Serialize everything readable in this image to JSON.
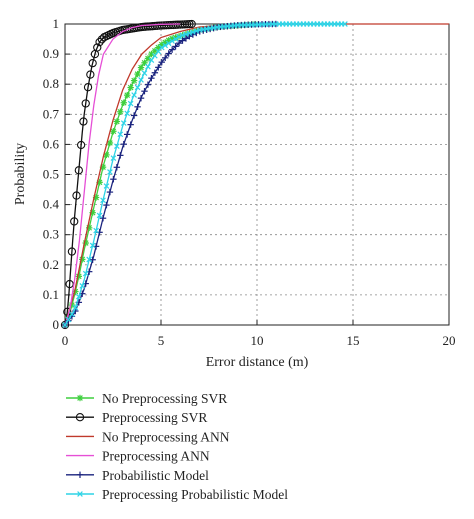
{
  "chart_data": {
    "type": "line",
    "xlabel": "Error distance (m)",
    "ylabel": "Probability",
    "xlim": [
      0,
      20
    ],
    "ylim": [
      0,
      1
    ],
    "xticks": [
      "0",
      "5",
      "10",
      "15",
      "20"
    ],
    "yticks": [
      "0",
      "0.1",
      "0.2",
      "0.3",
      "0.4",
      "0.5",
      "0.6",
      "0.7",
      "0.8",
      "0.9",
      "1"
    ],
    "grid": true,
    "legend_position": "bottom",
    "series": [
      {
        "name": "No Preprocessing SVR",
        "color": "#3ecf3e",
        "marker": "asterisk",
        "x": [
          0,
          0.25,
          0.5,
          0.75,
          1.0,
          1.25,
          1.5,
          1.75,
          2.0,
          2.5,
          3.0,
          3.5,
          4.0,
          4.5,
          5.0,
          5.5,
          6.0,
          7.0,
          8.0,
          9.0,
          10.0
        ],
        "y": [
          0,
          0.04,
          0.1,
          0.17,
          0.25,
          0.32,
          0.39,
          0.46,
          0.53,
          0.64,
          0.73,
          0.8,
          0.86,
          0.9,
          0.93,
          0.95,
          0.96,
          0.98,
          0.99,
          0.995,
          1.0
        ]
      },
      {
        "name": "Preprocessing SVR",
        "color": "#111111",
        "marker": "circle",
        "x": [
          0,
          0.1,
          0.2,
          0.3,
          0.4,
          0.5,
          0.6,
          0.7,
          0.8,
          0.9,
          1.0,
          1.2,
          1.4,
          1.6,
          1.8,
          2.0,
          2.5,
          3.0,
          3.5,
          4.0,
          5.0,
          6.0,
          6.6
        ],
        "y": [
          0,
          0.03,
          0.1,
          0.19,
          0.28,
          0.36,
          0.43,
          0.5,
          0.57,
          0.64,
          0.7,
          0.79,
          0.86,
          0.91,
          0.94,
          0.955,
          0.97,
          0.98,
          0.985,
          0.99,
          0.995,
          0.998,
          1.0
        ]
      },
      {
        "name": "No Preprocessing ANN",
        "color": "#c0392b",
        "marker": "none",
        "x": [
          0,
          0.5,
          1.0,
          1.5,
          2.0,
          2.5,
          3.0,
          3.5,
          4.0,
          4.5,
          5.0,
          6.0,
          7.0,
          8.0,
          9.0,
          10.0,
          12.0,
          15.0,
          20.0
        ],
        "y": [
          0,
          0.11,
          0.27,
          0.42,
          0.56,
          0.68,
          0.78,
          0.85,
          0.9,
          0.93,
          0.955,
          0.975,
          0.99,
          0.995,
          0.998,
          1.0,
          1.0,
          1.0,
          1.0
        ]
      },
      {
        "name": "Preprocessing ANN",
        "color": "#e64fd6",
        "marker": "none",
        "x": [
          0,
          0.25,
          0.5,
          0.75,
          1.0,
          1.25,
          1.5,
          1.75,
          2.0,
          2.5,
          3.0,
          3.5,
          4.0,
          5.0,
          6.0
        ],
        "y": [
          0,
          0.05,
          0.15,
          0.28,
          0.44,
          0.6,
          0.73,
          0.83,
          0.9,
          0.95,
          0.975,
          0.988,
          0.995,
          0.999,
          1.0
        ]
      },
      {
        "name": "Probabilistic Model",
        "color": "#1a237e",
        "marker": "plus",
        "x": [
          0,
          0.5,
          1.0,
          1.5,
          2.0,
          2.5,
          3.0,
          3.5,
          4.0,
          4.5,
          5.0,
          5.5,
          6.0,
          6.5,
          7.0,
          8.0,
          9.0,
          10.0,
          11.0
        ],
        "y": [
          0,
          0.04,
          0.12,
          0.23,
          0.36,
          0.48,
          0.59,
          0.68,
          0.76,
          0.82,
          0.87,
          0.91,
          0.94,
          0.96,
          0.975,
          0.99,
          0.996,
          0.999,
          1.0
        ]
      },
      {
        "name": "Preprocessing Probabilistic Model",
        "color": "#2ed3e6",
        "marker": "x",
        "x": [
          0,
          0.5,
          1.0,
          1.5,
          2.0,
          2.5,
          3.0,
          3.5,
          4.0,
          4.5,
          5.0,
          6.0,
          7.0,
          8.0,
          9.0,
          10.0,
          11.0,
          12.0,
          13.0,
          14.0,
          14.6
        ],
        "y": [
          0,
          0.05,
          0.15,
          0.28,
          0.42,
          0.55,
          0.66,
          0.75,
          0.82,
          0.88,
          0.92,
          0.96,
          0.98,
          0.99,
          0.996,
          0.998,
          1.0,
          1.0,
          1.0,
          1.0,
          1.0
        ]
      }
    ]
  }
}
